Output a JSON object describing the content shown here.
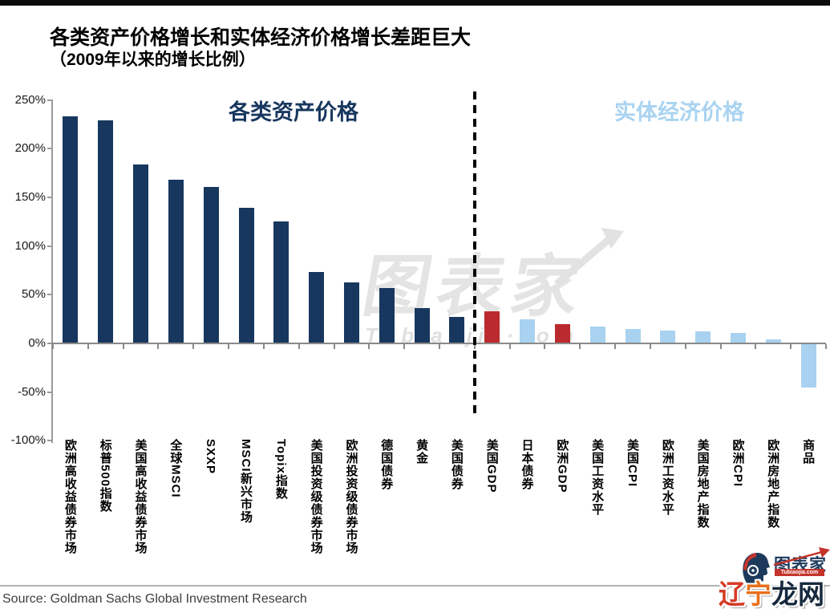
{
  "page": {
    "title": "各类资产价格增长和实体经济价格增长差距巨大",
    "subtitle": "（2009年以来的增长比例）",
    "source": "Source: Goldman Sachs Global Investment Research"
  },
  "watermark": {
    "text": "图表家",
    "subtext": "Tubiaojia·com"
  },
  "logo": {
    "brand": "图表家",
    "domain": "Tubiaojia.com",
    "site": "辽宁龙网",
    "site_chars": [
      "辽",
      "宁",
      "龙",
      "网"
    ],
    "site_char_colors": [
      "#d63b26",
      "#e8701c",
      "#16293e",
      "#16293e"
    ]
  },
  "colors": {
    "navy": "#17375e",
    "red": "#bb2a2e",
    "lightblue": "#a8d2ef",
    "axis": "#8a8a8a",
    "section_left": "#17375e",
    "section_right": "#a9d3f1",
    "watermark": "#e4e4e4"
  },
  "chart_data": {
    "type": "bar",
    "title": "各类资产价格增长和实体经济价格增长差距巨大（2009年以来的增长比例）",
    "xlabel": "",
    "ylabel": "",
    "ylim": [
      -100,
      250
    ],
    "grid": false,
    "legend_position": "none",
    "ytick_values": [
      250,
      200,
      150,
      100,
      50,
      0,
      -50,
      -100
    ],
    "ytick_labels": [
      "250%",
      "200%",
      "150%",
      "100%",
      "50%",
      "0%",
      "-50%",
      "-100%"
    ],
    "categories": [
      "欧洲高收益债券市场",
      "标普500指数",
      "美国高收益债券市场",
      "全球MSCI",
      "SXXP",
      "MSCI新兴市场",
      "Topix指数",
      "美国投资级债券市场",
      "欧洲投资级债券市场",
      "德国债券",
      "黄金",
      "美国债券",
      "美国GDP",
      "日本债券",
      "欧洲GDP",
      "美国工资水平",
      "美国CPI",
      "欧洲工资水平",
      "美国房地产指数",
      "欧洲CPI",
      "欧洲房地产指数",
      "商品"
    ],
    "values": [
      233,
      229,
      184,
      168,
      161,
      139,
      125,
      73,
      63,
      57,
      36,
      27,
      33,
      25,
      20,
      17,
      15,
      13,
      12,
      11,
      4,
      -45
    ],
    "bar_colors": [
      "navy",
      "navy",
      "navy",
      "navy",
      "navy",
      "navy",
      "navy",
      "navy",
      "navy",
      "navy",
      "navy",
      "navy",
      "red",
      "lightblue",
      "red",
      "lightblue",
      "lightblue",
      "lightblue",
      "lightblue",
      "lightblue",
      "lightblue",
      "lightblue"
    ],
    "divider_after_index": 11,
    "groups": [
      {
        "label": "各类资产价格",
        "color": "#17375e"
      },
      {
        "label": "实体经济价格",
        "color": "#a9d3f1"
      }
    ]
  }
}
